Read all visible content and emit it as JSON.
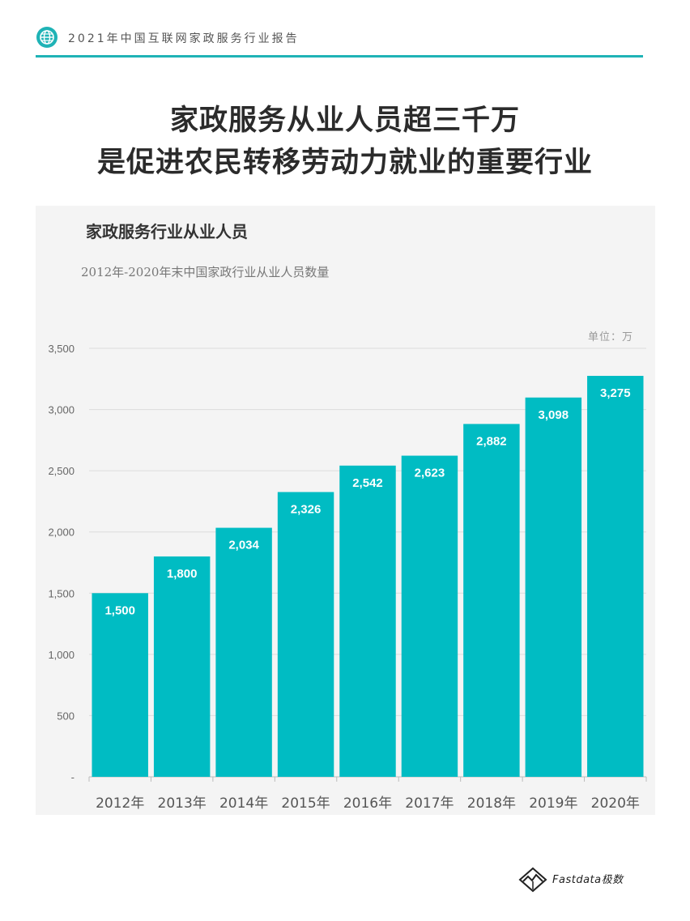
{
  "header": {
    "title": "2021年中国互联网家政服务行业报告",
    "accent_color": "#1fb3b6",
    "icon": "globe-icon"
  },
  "headline": {
    "line1": "家政服务从业人员超三千万",
    "line2": "是促进农民转移劳动力就业的重要行业"
  },
  "chart_data": {
    "type": "bar",
    "title": "家政服务行业从业人员",
    "subtitle": "2012年-2020年末中国家政行业从业人员数量",
    "unit_label": "单位：万",
    "categories": [
      "2012年",
      "2013年",
      "2014年",
      "2015年",
      "2016年",
      "2017年",
      "2018年",
      "2019年",
      "2020年"
    ],
    "values": [
      1500,
      1800,
      2034,
      2326,
      2542,
      2623,
      2882,
      3098,
      3275
    ],
    "value_labels": [
      "1,500",
      "1,800",
      "2,034",
      "2,326",
      "2,542",
      "2,623",
      "2,882",
      "3,098",
      "3,275"
    ],
    "yticks": [
      "-",
      "500",
      "1,000",
      "1,500",
      "2,000",
      "2,500",
      "3,000",
      "3,500"
    ],
    "ylim": [
      0,
      3500
    ],
    "bar_color": "#00bcc3",
    "grid": true,
    "legend": false
  },
  "footer": {
    "logo_text": "Fastdata极数",
    "logo_icon": "fastdata-logo-icon"
  }
}
